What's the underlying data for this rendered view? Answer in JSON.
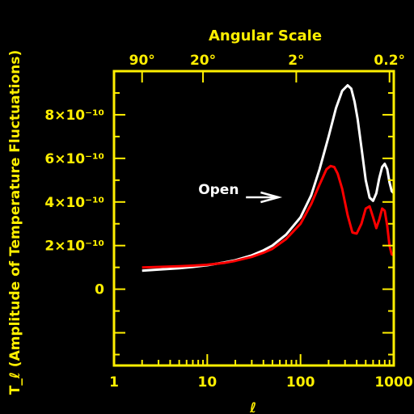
{
  "chart_data": {
    "type": "line",
    "title": "",
    "top_axis_title": "Angular Scale",
    "xlabel": "ℓ",
    "ylabel": "T_ℓ (Amplitude of Temperature Fluctuations)",
    "xscale": "log",
    "xlim": [
      1,
      1000
    ],
    "ylim": [
      -3.5e-10,
      1e-09
    ],
    "x_ticks": [
      {
        "value": 1,
        "label": "1"
      },
      {
        "value": 10,
        "label": "10"
      },
      {
        "value": 100,
        "label": "100"
      },
      {
        "value": 1000,
        "label": "1000"
      }
    ],
    "y_ticks": [
      {
        "value": 0,
        "label": "0"
      },
      {
        "value": 2e-10,
        "label": "2×10⁻¹⁰"
      },
      {
        "value": 4e-10,
        "label": "4×10⁻¹⁰"
      },
      {
        "value": 6e-10,
        "label": "6×10⁻¹⁰"
      },
      {
        "value": 8e-10,
        "label": "8×10⁻¹⁰"
      }
    ],
    "top_ticks": [
      {
        "value": 2,
        "label": "90°"
      },
      {
        "value": 9,
        "label": "20°"
      },
      {
        "value": 90,
        "label": "2°"
      },
      {
        "value": 900,
        "label": "0.2°"
      }
    ],
    "annotation": {
      "text": "Open",
      "arrow_from_x": 26,
      "arrow_to_x": 58,
      "y": 4.4e-10
    },
    "grid": false,
    "colors": {
      "axes": "#ffef00",
      "background": "#000000"
    },
    "series": [
      {
        "color": "#ffffff",
        "x": [
          2,
          3,
          5,
          7,
          10,
          15,
          20,
          30,
          40,
          50,
          70,
          100,
          130,
          160,
          200,
          240,
          280,
          320,
          350,
          380,
          410,
          450,
          500,
          550,
          600,
          650,
          700,
          750,
          800,
          850,
          900,
          950,
          1000
        ],
        "y": [
          8.5e-11,
          9e-11,
          9.6e-11,
          1.02e-10,
          1.1e-10,
          1.22e-10,
          1.33e-10,
          1.55e-10,
          1.78e-10,
          2e-10,
          2.5e-10,
          3.3e-10,
          4.3e-10,
          5.5e-10,
          7e-10,
          8.3e-10,
          9.1e-10,
          9.35e-10,
          9.2e-10,
          8.6e-10,
          7.8e-10,
          6.5e-10,
          5e-10,
          4.2e-10,
          4.05e-10,
          4.4e-10,
          5.1e-10,
          5.6e-10,
          5.75e-10,
          5.5e-10,
          4.9e-10,
          4.5e-10,
          4.4e-10
        ]
      },
      {
        "color": "#ff0000",
        "x": [
          2,
          3,
          5,
          7,
          10,
          15,
          20,
          30,
          40,
          50,
          70,
          100,
          130,
          160,
          190,
          210,
          230,
          250,
          280,
          320,
          360,
          400,
          450,
          500,
          550,
          600,
          650,
          700,
          750,
          800,
          850,
          900,
          950,
          1000
        ],
        "y": [
          1e-10,
          1.02e-10,
          1.05e-10,
          1.08e-10,
          1.12e-10,
          1.2e-10,
          1.3e-10,
          1.48e-10,
          1.67e-10,
          1.85e-10,
          2.3e-10,
          3e-10,
          3.9e-10,
          4.8e-10,
          5.5e-10,
          5.65e-10,
          5.6e-10,
          5.3e-10,
          4.6e-10,
          3.4e-10,
          2.6e-10,
          2.55e-10,
          3e-10,
          3.7e-10,
          3.8e-10,
          3.3e-10,
          2.8e-10,
          3.2e-10,
          3.7e-10,
          3.6e-10,
          2.9e-10,
          2e-10,
          1.6e-10,
          1.55e-10
        ]
      }
    ]
  }
}
